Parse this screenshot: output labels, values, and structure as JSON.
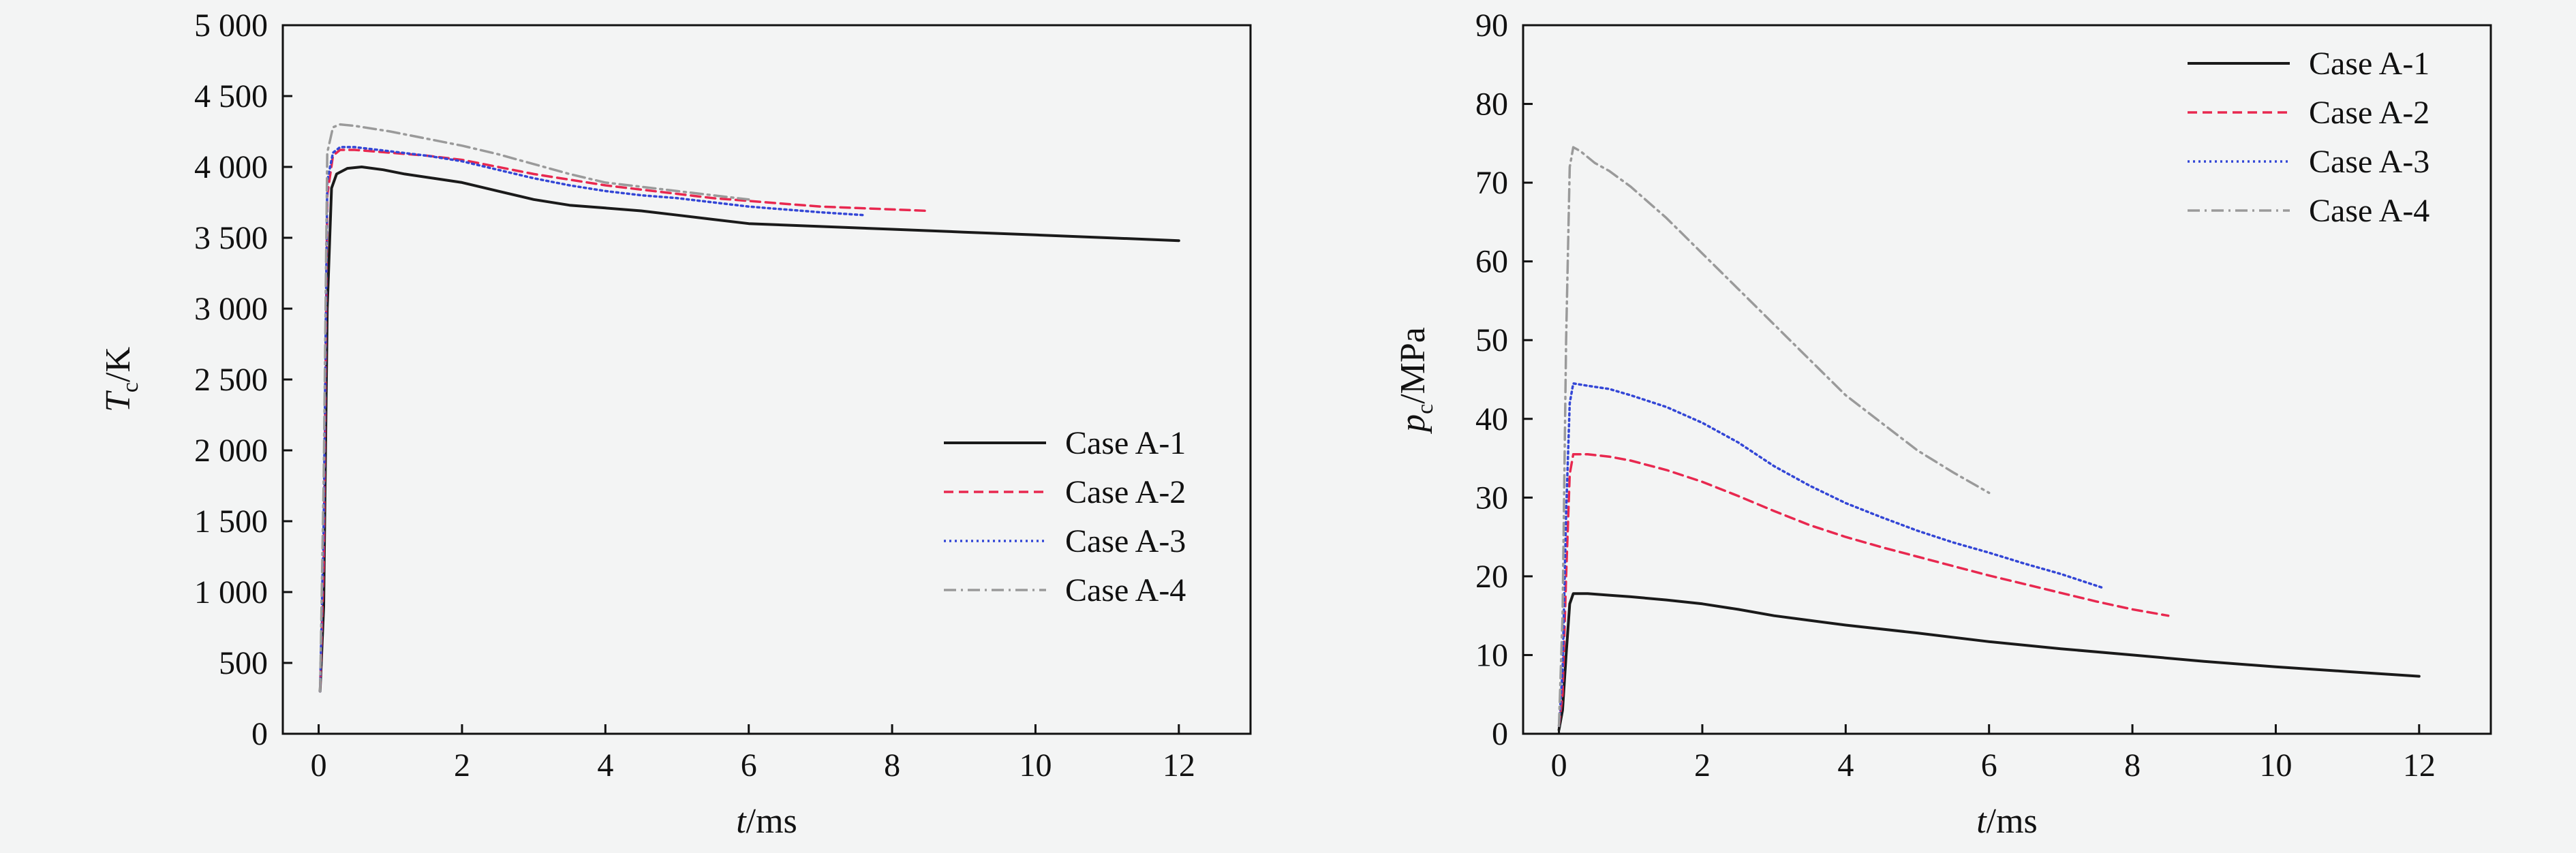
{
  "colors": {
    "background": "#f3f4f4",
    "A1": "#1a1a1a",
    "A2": "#e8284f",
    "A3": "#3346d6",
    "A4": "#9a9a9a",
    "A4_alt": "#2fbf4a"
  },
  "chart_data": [
    {
      "type": "line",
      "id": "temperature",
      "title": "",
      "xlabel_var": "t",
      "xlabel_unit": "/ms",
      "ylabel_var": "T",
      "ylabel_sub": "c",
      "ylabel_unit": "/K",
      "xlim": [
        -0.5,
        13
      ],
      "ylim": [
        0,
        5000
      ],
      "xticks": [
        0,
        2,
        4,
        6,
        8,
        10,
        12
      ],
      "xtick_labels": [
        "0",
        "2",
        "4",
        "6",
        "8",
        "10",
        "12"
      ],
      "yticks": [
        0,
        500,
        1000,
        1500,
        2000,
        2500,
        3000,
        3500,
        4000,
        4500,
        5000
      ],
      "ytick_labels": [
        "0",
        "500",
        "1 000",
        "1 500",
        "2 000",
        "2 500",
        "3 000",
        "3 500",
        "4 000",
        "4 500",
        "5 000"
      ],
      "legend_position": "center-right",
      "series": [
        {
          "name": "Case A-1",
          "color": "#1a1a1a",
          "dash": "solid",
          "x": [
            0.02,
            0.07,
            0.12,
            0.18,
            0.25,
            0.4,
            0.6,
            0.9,
            1.2,
            1.6,
            2.0,
            2.5,
            3.0,
            3.5,
            4.0,
            4.5,
            5.0,
            5.5,
            6.0,
            7.0,
            8.0,
            9.0,
            10.0,
            11.0,
            12.0
          ],
          "y": [
            300,
            900,
            3000,
            3850,
            3950,
            3990,
            4000,
            3980,
            3950,
            3920,
            3890,
            3830,
            3770,
            3730,
            3710,
            3690,
            3660,
            3630,
            3600,
            3580,
            3560,
            3540,
            3520,
            3500,
            3480
          ]
        },
        {
          "name": "Case A-2",
          "color": "#e8284f",
          "dash": "dash",
          "x": [
            0.02,
            0.07,
            0.12,
            0.2,
            0.3,
            0.5,
            1.0,
            1.5,
            2.0,
            2.5,
            3.0,
            3.5,
            4.0,
            4.5,
            5.0,
            5.5,
            6.0,
            6.5,
            7.0,
            7.5,
            8.0,
            8.5
          ],
          "y": [
            300,
            1200,
            3800,
            4080,
            4120,
            4120,
            4100,
            4080,
            4050,
            4000,
            3950,
            3910,
            3870,
            3840,
            3810,
            3780,
            3760,
            3740,
            3720,
            3710,
            3700,
            3690
          ]
        },
        {
          "name": "Case A-3",
          "color": "#3346d6",
          "dash": "dot",
          "x": [
            0.02,
            0.07,
            0.12,
            0.2,
            0.3,
            0.5,
            1.0,
            1.5,
            2.0,
            2.5,
            3.0,
            3.5,
            4.0,
            4.5,
            5.0,
            5.5,
            6.0,
            6.5,
            7.0,
            7.6
          ],
          "y": [
            300,
            1500,
            3900,
            4100,
            4140,
            4140,
            4110,
            4080,
            4040,
            3980,
            3920,
            3870,
            3830,
            3800,
            3780,
            3750,
            3720,
            3700,
            3680,
            3660
          ]
        },
        {
          "name": "Case A-4",
          "color": "#9a9a9a",
          "dash": "dashdot",
          "x": [
            0.02,
            0.07,
            0.12,
            0.2,
            0.3,
            0.5,
            1.0,
            1.5,
            2.0,
            2.5,
            3.0,
            3.5,
            4.0,
            4.5,
            5.0,
            5.5,
            6.0
          ],
          "y": [
            300,
            1800,
            4100,
            4280,
            4300,
            4290,
            4250,
            4200,
            4150,
            4090,
            4020,
            3950,
            3890,
            3860,
            3830,
            3800,
            3770
          ]
        }
      ]
    },
    {
      "type": "line",
      "id": "pressure",
      "title": "",
      "xlabel_var": "t",
      "xlabel_unit": "/ms",
      "ylabel_var": "p",
      "ylabel_sub": "c",
      "ylabel_unit": "/MPa",
      "xlim": [
        -0.5,
        13
      ],
      "ylim": [
        0,
        90
      ],
      "xticks": [
        0,
        2,
        4,
        6,
        8,
        10,
        12
      ],
      "xtick_labels": [
        "0",
        "2",
        "4",
        "6",
        "8",
        "10",
        "12"
      ],
      "yticks": [
        0,
        10,
        20,
        30,
        40,
        50,
        60,
        70,
        80,
        90
      ],
      "ytick_labels": [
        "0",
        "10",
        "20",
        "30",
        "40",
        "50",
        "60",
        "70",
        "80",
        "90"
      ],
      "legend_position": "top-right",
      "series": [
        {
          "name": "Case A-1",
          "color": "#1a1a1a",
          "dash": "solid",
          "x": [
            0.0,
            0.05,
            0.1,
            0.15,
            0.2,
            0.4,
            0.7,
            1.0,
            1.5,
            2.0,
            2.5,
            3.0,
            3.5,
            4.0,
            5.0,
            6.0,
            7.0,
            8.0,
            9.0,
            10.0,
            11.0,
            12.0
          ],
          "y": [
            0.5,
            3,
            10,
            16.5,
            17.8,
            17.8,
            17.6,
            17.4,
            17.0,
            16.5,
            15.8,
            15.0,
            14.4,
            13.8,
            12.8,
            11.7,
            10.8,
            10.0,
            9.2,
            8.5,
            7.9,
            7.3
          ]
        },
        {
          "name": "Case A-2",
          "color": "#e8284f",
          "dash": "dash",
          "x": [
            0.0,
            0.05,
            0.1,
            0.15,
            0.2,
            0.4,
            0.7,
            1.0,
            1.5,
            2.0,
            2.5,
            3.0,
            3.5,
            4.0,
            4.5,
            5.0,
            5.5,
            6.0,
            6.5,
            7.0,
            7.5,
            8.0,
            8.5
          ],
          "y": [
            1,
            5,
            20,
            33,
            35.5,
            35.5,
            35.2,
            34.7,
            33.5,
            32.0,
            30.2,
            28.3,
            26.5,
            25.0,
            23.7,
            22.5,
            21.3,
            20.1,
            19.0,
            17.9,
            16.8,
            15.8,
            15.0
          ]
        },
        {
          "name": "Case A-3",
          "color": "#3346d6",
          "dash": "dot",
          "x": [
            0.0,
            0.05,
            0.1,
            0.15,
            0.2,
            0.4,
            0.7,
            1.0,
            1.5,
            2.0,
            2.5,
            3.0,
            3.5,
            4.0,
            4.5,
            5.0,
            5.5,
            6.0,
            6.5,
            7.0,
            7.6
          ],
          "y": [
            1,
            8,
            28,
            42,
            44.5,
            44.2,
            43.8,
            43.0,
            41.5,
            39.5,
            37.0,
            34.0,
            31.5,
            29.3,
            27.5,
            25.8,
            24.3,
            23.0,
            21.6,
            20.3,
            18.5
          ]
        },
        {
          "name": "Case A-4",
          "color": "#9a9a9a",
          "dash": "dashdot",
          "x": [
            0.0,
            0.05,
            0.1,
            0.15,
            0.2,
            0.3,
            0.5,
            0.7,
            1.0,
            1.5,
            2.0,
            2.5,
            3.0,
            3.5,
            4.0,
            4.5,
            5.0,
            5.5,
            6.0
          ],
          "y": [
            1,
            15,
            50,
            72,
            74.5,
            74.0,
            72.5,
            71.5,
            69.5,
            65.5,
            61.0,
            56.5,
            52.0,
            47.5,
            43.0,
            39.5,
            36.0,
            33.2,
            30.6
          ]
        }
      ]
    }
  ]
}
